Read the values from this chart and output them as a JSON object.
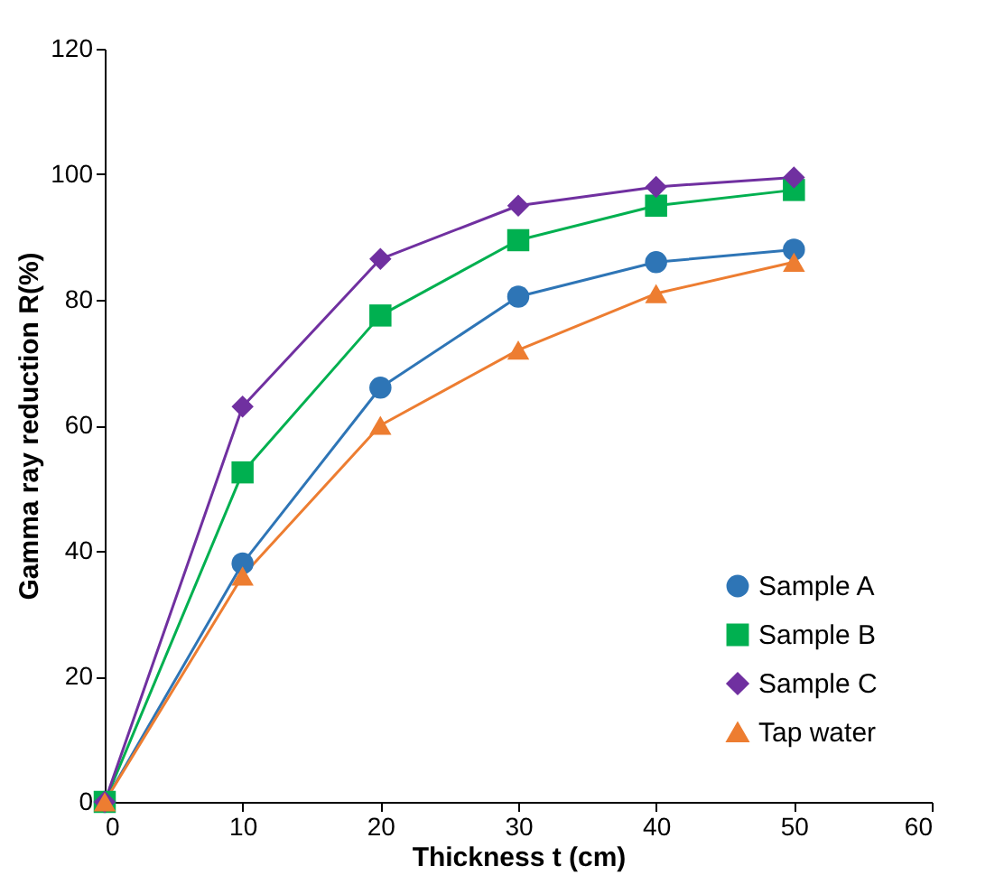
{
  "chart_data": {
    "type": "line",
    "xlabel": "Thickness t (cm)",
    "ylabel": "Gamma ray reduction R(%)",
    "x": [
      0,
      10,
      20,
      30,
      40,
      50
    ],
    "series": [
      {
        "name": "Sample A",
        "color": "#2e75b6",
        "marker": "circle",
        "values": [
          0,
          38,
          66,
          80.5,
          86,
          88
        ]
      },
      {
        "name": "Sample B",
        "color": "#00b050",
        "marker": "square",
        "values": [
          0,
          52.5,
          77.5,
          89.5,
          95,
          97.5
        ]
      },
      {
        "name": "Sample C",
        "color": "#7030a0",
        "marker": "diamond",
        "values": [
          0,
          63,
          86.5,
          95,
          98,
          99.5
        ]
      },
      {
        "name": "Tap water",
        "color": "#ed7d31",
        "marker": "triangle",
        "values": [
          0,
          36,
          60,
          72,
          81,
          86
        ]
      }
    ],
    "xlim": [
      0,
      60
    ],
    "xticks": [
      0,
      10,
      20,
      30,
      40,
      50,
      60
    ],
    "ylim": [
      0,
      120
    ],
    "yticks": [
      0,
      20,
      40,
      60,
      80,
      100,
      120
    ],
    "grid": false,
    "legend": "bottom right",
    "line_style": "solid"
  }
}
